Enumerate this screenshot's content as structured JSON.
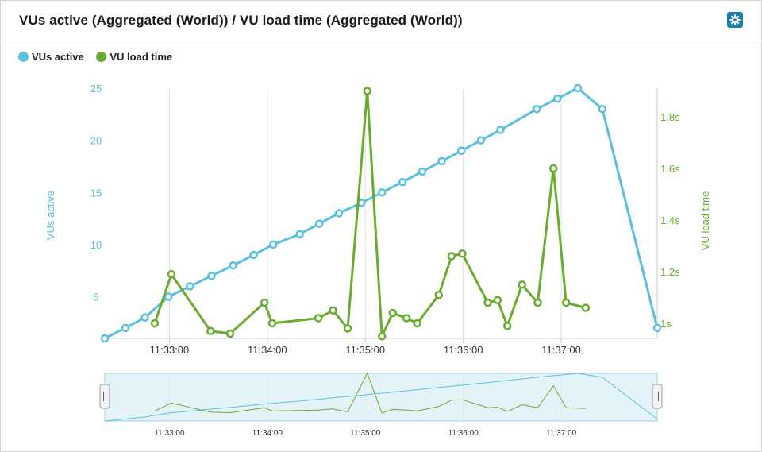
{
  "header": {
    "title": "VUs active (Aggregated (World)) / VU load time (Aggregated (World))",
    "settings_icon": "gear-icon"
  },
  "colors": {
    "vus": "#5bc0de",
    "load": "#6aac2f",
    "grid": "#e0e0e0",
    "navigator_fill": "#e4f3f7",
    "navigator_stroke": "#9fd4e4"
  },
  "legend": [
    {
      "label": "VUs active",
      "color": "#5bc0de"
    },
    {
      "label": "VU load time",
      "color": "#6aac2f"
    }
  ],
  "chart_data": {
    "type": "line",
    "title": "VUs active (Aggregated (World)) / VU load time (Aggregated (World))",
    "x_ticks": [
      "11:33:00",
      "11:34:00",
      "11:35:00",
      "11:36:00",
      "11:37:00"
    ],
    "x_tick_times_min": [
      33,
      34,
      35,
      36,
      37
    ],
    "x_range_min": [
      32.34,
      37.98
    ],
    "y_left": {
      "label": "VUs active",
      "ticks": [
        "5",
        "10",
        "15",
        "20",
        "25"
      ],
      "tick_values": [
        5,
        10,
        15,
        20,
        25
      ],
      "range": [
        1,
        25
      ]
    },
    "y_right": {
      "label": "VU load time",
      "ticks": [
        "1s",
        "1.2s",
        "1.4s",
        "1.6s",
        "1.8s"
      ],
      "tick_values": [
        1.0,
        1.2,
        1.4,
        1.6,
        1.8
      ],
      "range": [
        0.95,
        1.92
      ]
    },
    "series": [
      {
        "name": "VUs active",
        "axis": "left",
        "points": [
          [
            32.34,
            1
          ],
          [
            32.55,
            2
          ],
          [
            32.75,
            3
          ],
          [
            32.99,
            5
          ],
          [
            33.21,
            6
          ],
          [
            33.43,
            7
          ],
          [
            33.65,
            8
          ],
          [
            33.86,
            9
          ],
          [
            34.06,
            10
          ],
          [
            34.33,
            11
          ],
          [
            34.53,
            12
          ],
          [
            34.73,
            13
          ],
          [
            34.96,
            14
          ],
          [
            35.17,
            15
          ],
          [
            35.38,
            16
          ],
          [
            35.58,
            17
          ],
          [
            35.78,
            18
          ],
          [
            35.98,
            19
          ],
          [
            36.18,
            20
          ],
          [
            36.38,
            21
          ],
          [
            36.75,
            23
          ],
          [
            36.96,
            24
          ],
          [
            37.17,
            25
          ],
          [
            37.42,
            23
          ],
          [
            37.98,
            2
          ]
        ]
      },
      {
        "name": "VU load time",
        "axis": "right",
        "points": [
          [
            32.85,
            1.0
          ],
          [
            33.02,
            1.19
          ],
          [
            33.42,
            0.97
          ],
          [
            33.62,
            0.96
          ],
          [
            33.97,
            1.08
          ],
          [
            34.05,
            1.0
          ],
          [
            34.52,
            1.02
          ],
          [
            34.67,
            1.05
          ],
          [
            34.82,
            0.98
          ],
          [
            35.02,
            1.9
          ],
          [
            35.17,
            0.95
          ],
          [
            35.28,
            1.04
          ],
          [
            35.42,
            1.02
          ],
          [
            35.53,
            1.0
          ],
          [
            35.75,
            1.11
          ],
          [
            35.88,
            1.26
          ],
          [
            35.99,
            1.27
          ],
          [
            36.25,
            1.08
          ],
          [
            36.35,
            1.09
          ],
          [
            36.45,
            0.99
          ],
          [
            36.6,
            1.15
          ],
          [
            36.76,
            1.08
          ],
          [
            36.92,
            1.6
          ],
          [
            37.05,
            1.08
          ],
          [
            37.25,
            1.06
          ]
        ]
      }
    ]
  }
}
